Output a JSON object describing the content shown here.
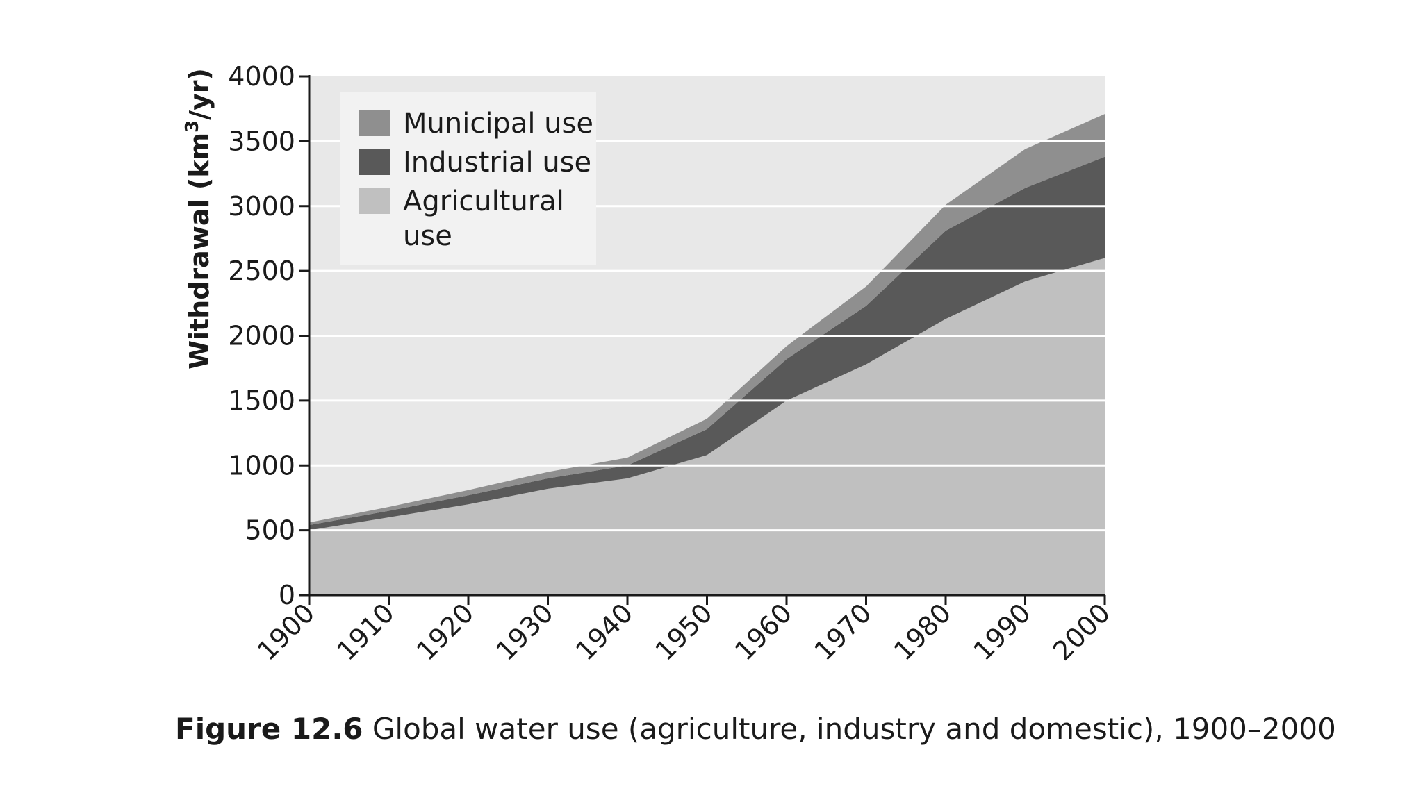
{
  "chart_data": {
    "type": "area",
    "stacked": true,
    "x": [
      1900,
      1910,
      1920,
      1930,
      1940,
      1950,
      1960,
      1970,
      1980,
      1990,
      2000
    ],
    "series": [
      {
        "name": "Agricultural use",
        "label_lines": [
          "Agricultural",
          "use"
        ],
        "color": "#c0c0c0",
        "values": [
          500,
          600,
          700,
          820,
          900,
          1080,
          1500,
          1780,
          2130,
          2420,
          2600
        ]
      },
      {
        "name": "Industrial use",
        "label_lines": [
          "Industrial use"
        ],
        "color": "#595959",
        "values": [
          40,
          50,
          70,
          80,
          100,
          200,
          320,
          450,
          680,
          720,
          780
        ]
      },
      {
        "name": "Municipal use",
        "label_lines": [
          "Municipal use"
        ],
        "color": "#8f8f8f",
        "values": [
          20,
          30,
          40,
          50,
          60,
          80,
          100,
          150,
          200,
          300,
          330
        ]
      }
    ],
    "legend_order": [
      "Municipal use",
      "Industrial use",
      "Agricultural use"
    ],
    "ylim": [
      0,
      4000
    ],
    "yticks": [
      0,
      500,
      1000,
      1500,
      2000,
      2500,
      3000,
      3500,
      4000
    ],
    "xticks": [
      1900,
      1910,
      1920,
      1930,
      1940,
      1950,
      1960,
      1970,
      1980,
      1990,
      2000
    ],
    "ylabel_prefix": "Withdrawal (km",
    "ylabel_sup": "3",
    "ylabel_suffix": "/yr)",
    "xlabel": "",
    "grid": true,
    "legend_position": "top-left",
    "plot_background": "#e8e8e8"
  },
  "caption": {
    "label": "Figure 12.6",
    "text": " Global water use (agriculture, industry and domestic), 1900–2000"
  }
}
